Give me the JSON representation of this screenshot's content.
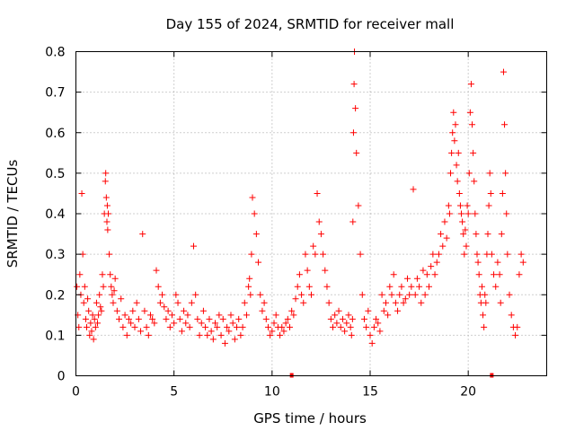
{
  "chart_data": {
    "type": "scatter",
    "title": "Day 155 of 2024, SRMTID for receiver mall",
    "xlabel": "GPS time / hours",
    "ylabel": "SRMTID / TECUs",
    "xlim": [
      0,
      24
    ],
    "ylim": [
      0,
      0.8
    ],
    "x_ticks": [
      "0",
      "5",
      "10",
      "15",
      "20"
    ],
    "y_ticks": [
      "0",
      "0.1",
      "0.2",
      "0.3",
      "0.4",
      "0.5",
      "0.6",
      "0.7",
      "0.8"
    ],
    "grid": true,
    "marker": "plus",
    "color": "#ff0000",
    "baseline_markers_x": [
      11,
      21.2
    ],
    "series": [
      {
        "name": "SRMTID",
        "x": [
          0.05,
          0.1,
          0.15,
          0.2,
          0.25,
          0.3,
          0.35,
          0.4,
          0.45,
          0.5,
          0.55,
          0.6,
          0.65,
          0.7,
          0.75,
          0.8,
          0.85,
          0.9,
          0.95,
          1.0,
          1.05,
          1.1,
          1.15,
          1.2,
          1.25,
          1.3,
          1.35,
          1.4,
          1.45,
          1.5,
          1.52,
          1.55,
          1.58,
          1.6,
          1.62,
          1.65,
          1.7,
          1.75,
          1.8,
          1.85,
          1.9,
          1.95,
          2.0,
          2.1,
          2.2,
          2.3,
          2.4,
          2.5,
          2.6,
          2.7,
          2.8,
          2.9,
          3.0,
          3.1,
          3.2,
          3.3,
          3.4,
          3.5,
          3.6,
          3.7,
          3.8,
          3.9,
          4.0,
          4.1,
          4.2,
          4.3,
          4.4,
          4.5,
          4.6,
          4.7,
          4.8,
          4.9,
          5.0,
          5.1,
          5.2,
          5.3,
          5.4,
          5.5,
          5.6,
          5.7,
          5.8,
          5.9,
          6.0,
          6.1,
          6.2,
          6.3,
          6.4,
          6.5,
          6.6,
          6.7,
          6.8,
          6.9,
          7.0,
          7.1,
          7.2,
          7.3,
          7.4,
          7.5,
          7.6,
          7.7,
          7.8,
          7.9,
          8.0,
          8.1,
          8.2,
          8.3,
          8.4,
          8.5,
          8.6,
          8.7,
          8.8,
          8.85,
          8.9,
          8.95,
          9.0,
          9.1,
          9.2,
          9.3,
          9.4,
          9.5,
          9.6,
          9.7,
          9.8,
          9.9,
          10.0,
          10.1,
          10.2,
          10.3,
          10.4,
          10.5,
          10.6,
          10.7,
          10.8,
          10.9,
          11.0,
          11.1,
          11.2,
          11.3,
          11.4,
          11.5,
          11.6,
          11.7,
          11.8,
          11.9,
          12.0,
          12.1,
          12.2,
          12.3,
          12.4,
          12.5,
          12.6,
          12.7,
          12.8,
          12.9,
          13.0,
          13.1,
          13.2,
          13.3,
          13.4,
          13.5,
          13.6,
          13.7,
          13.8,
          13.9,
          14.0,
          14.05,
          14.1,
          14.12,
          14.15,
          14.18,
          14.2,
          14.25,
          14.3,
          14.4,
          14.5,
          14.6,
          14.7,
          14.8,
          14.9,
          15.0,
          15.1,
          15.2,
          15.3,
          15.4,
          15.5,
          15.6,
          15.7,
          15.8,
          15.9,
          16.0,
          16.1,
          16.2,
          16.3,
          16.4,
          16.5,
          16.6,
          16.7,
          16.8,
          16.9,
          17.0,
          17.1,
          17.2,
          17.3,
          17.4,
          17.5,
          17.6,
          17.7,
          17.8,
          17.9,
          18.0,
          18.1,
          18.2,
          18.3,
          18.4,
          18.5,
          18.6,
          18.7,
          18.8,
          18.9,
          19.0,
          19.05,
          19.1,
          19.15,
          19.2,
          19.25,
          19.3,
          19.35,
          19.4,
          19.45,
          19.5,
          19.55,
          19.6,
          19.65,
          19.7,
          19.75,
          19.8,
          19.85,
          19.9,
          19.95,
          20.0,
          20.05,
          20.1,
          20.15,
          20.2,
          20.25,
          20.3,
          20.35,
          20.4,
          20.45,
          20.5,
          20.55,
          20.6,
          20.65,
          20.7,
          20.75,
          20.8,
          20.85,
          20.9,
          20.95,
          21.0,
          21.05,
          21.1,
          21.15,
          21.2,
          21.3,
          21.4,
          21.5,
          21.6,
          21.65,
          21.7,
          21.75,
          21.8,
          21.85,
          21.9,
          21.95,
          22.0,
          22.1,
          22.2,
          22.3,
          22.4,
          22.5,
          22.6,
          22.7,
          22.8
        ],
        "y": [
          0.22,
          0.15,
          0.12,
          0.25,
          0.2,
          0.45,
          0.3,
          0.18,
          0.22,
          0.14,
          0.12,
          0.19,
          0.16,
          0.1,
          0.13,
          0.11,
          0.15,
          0.09,
          0.14,
          0.12,
          0.18,
          0.13,
          0.15,
          0.2,
          0.17,
          0.16,
          0.25,
          0.22,
          0.4,
          0.48,
          0.5,
          0.44,
          0.38,
          0.42,
          0.36,
          0.4,
          0.3,
          0.25,
          0.22,
          0.2,
          0.18,
          0.21,
          0.24,
          0.16,
          0.14,
          0.19,
          0.12,
          0.15,
          0.1,
          0.14,
          0.13,
          0.16,
          0.12,
          0.18,
          0.14,
          0.11,
          0.35,
          0.16,
          0.12,
          0.1,
          0.15,
          0.14,
          0.13,
          0.26,
          0.22,
          0.18,
          0.2,
          0.17,
          0.14,
          0.16,
          0.12,
          0.15,
          0.13,
          0.2,
          0.18,
          0.14,
          0.11,
          0.16,
          0.13,
          0.15,
          0.12,
          0.18,
          0.32,
          0.2,
          0.14,
          0.1,
          0.13,
          0.16,
          0.12,
          0.1,
          0.14,
          0.11,
          0.09,
          0.13,
          0.12,
          0.15,
          0.1,
          0.14,
          0.08,
          0.12,
          0.11,
          0.15,
          0.13,
          0.09,
          0.12,
          0.14,
          0.1,
          0.12,
          0.18,
          0.15,
          0.22,
          0.24,
          0.2,
          0.3,
          0.44,
          0.4,
          0.35,
          0.28,
          0.2,
          0.16,
          0.18,
          0.14,
          0.12,
          0.1,
          0.11,
          0.13,
          0.15,
          0.12,
          0.1,
          0.12,
          0.11,
          0.13,
          0.14,
          0.12,
          0.16,
          0.15,
          0.19,
          0.22,
          0.25,
          0.2,
          0.18,
          0.3,
          0.26,
          0.22,
          0.2,
          0.32,
          0.3,
          0.45,
          0.38,
          0.35,
          0.3,
          0.26,
          0.22,
          0.18,
          0.14,
          0.12,
          0.15,
          0.13,
          0.16,
          0.12,
          0.14,
          0.11,
          0.13,
          0.15,
          0.12,
          0.1,
          0.14,
          0.38,
          0.6,
          0.72,
          0.8,
          0.66,
          0.55,
          0.42,
          0.3,
          0.2,
          0.14,
          0.12,
          0.16,
          0.1,
          0.08,
          0.12,
          0.14,
          0.13,
          0.11,
          0.2,
          0.16,
          0.18,
          0.15,
          0.22,
          0.2,
          0.25,
          0.18,
          0.16,
          0.2,
          0.22,
          0.18,
          0.19,
          0.24,
          0.2,
          0.22,
          0.46,
          0.2,
          0.24,
          0.22,
          0.18,
          0.26,
          0.2,
          0.25,
          0.22,
          0.27,
          0.3,
          0.25,
          0.28,
          0.3,
          0.35,
          0.32,
          0.38,
          0.34,
          0.42,
          0.4,
          0.5,
          0.55,
          0.6,
          0.65,
          0.58,
          0.62,
          0.52,
          0.48,
          0.55,
          0.45,
          0.42,
          0.4,
          0.38,
          0.35,
          0.3,
          0.36,
          0.32,
          0.42,
          0.4,
          0.5,
          0.65,
          0.72,
          0.62,
          0.55,
          0.48,
          0.4,
          0.35,
          0.3,
          0.28,
          0.25,
          0.2,
          0.18,
          0.22,
          0.15,
          0.12,
          0.2,
          0.18,
          0.3,
          0.35,
          0.42,
          0.5,
          0.45,
          0.3,
          0.25,
          0.22,
          0.28,
          0.25,
          0.18,
          0.35,
          0.45,
          0.75,
          0.62,
          0.5,
          0.4,
          0.3,
          0.2,
          0.15,
          0.12,
          0.1,
          0.12,
          0.25,
          0.3,
          0.28
        ]
      }
    ]
  }
}
